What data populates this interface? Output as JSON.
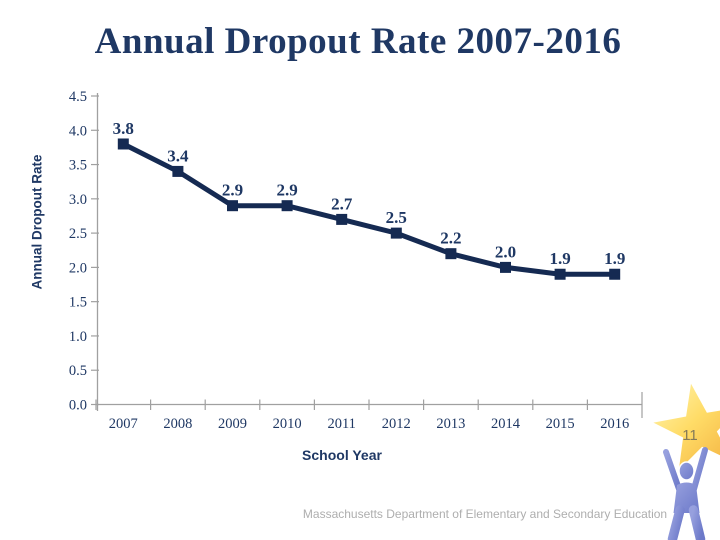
{
  "slide": {
    "title": "Annual Dropout Rate 2007-2016",
    "footer": "Massachusetts Department of Elementary and Secondary Education",
    "page_number": "11"
  },
  "chart_data": {
    "type": "line",
    "title": "Annual Dropout Rate 2007-2016",
    "categories": [
      "2007",
      "2008",
      "2009",
      "2010",
      "2011",
      "2012",
      "2013",
      "2014",
      "2015",
      "2016"
    ],
    "values": [
      3.8,
      3.4,
      2.9,
      2.9,
      2.7,
      2.5,
      2.2,
      2.0,
      1.9,
      1.9
    ],
    "data_labels": [
      "3.8",
      "3.4",
      "2.9",
      "2.9",
      "2.7",
      "2.5",
      "2.2",
      "2.0",
      "1.9",
      "1.9"
    ],
    "xlabel": "School Year",
    "ylabel": "Annual Dropout Rate",
    "ylim": [
      0,
      4.5
    ],
    "ytick_step": 0.5,
    "grid": false,
    "legend": "none",
    "marker": "square",
    "line_color": "#152a52",
    "label_color": "#1f3864",
    "axis_color": "#a0a0a0"
  },
  "theme": {
    "navy_text": "#1f3864",
    "footer_gray": "#aeaeae",
    "star_light": "#fff6b5",
    "star_mid": "#ffdc67",
    "star_deep": "#f2ac3c",
    "star_number_color": "#857a58",
    "person_blue_light": "#97a0de",
    "person_blue": "#7d88d3",
    "person_blue_dark": "#6c79c9"
  }
}
